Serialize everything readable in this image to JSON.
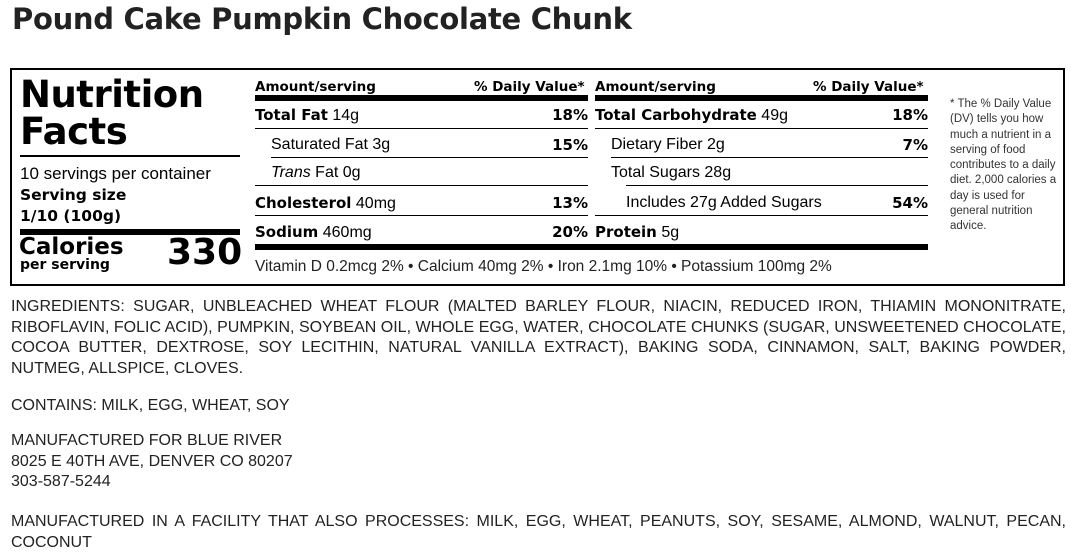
{
  "product": {
    "title": "Pound Cake Pumpkin Chocolate Chunk"
  },
  "nutrition": {
    "heading_line1": "Nutrition",
    "heading_line2": "Facts",
    "servings_per_container": "10 servings per container",
    "serving_size_label": "Serving size",
    "serving_size_value": "1/10 (100g)",
    "calories_label": "Calories",
    "calories_sub": "per serving",
    "calories_value": "330",
    "col_header_amount": "Amount/serving",
    "col_header_dv": "% Daily Value*",
    "left_rows": [
      {
        "name": "Total Fat",
        "amount": "14g",
        "dv": "18%"
      },
      {
        "name": "Saturated Fat",
        "amount": "3g",
        "dv": "15%"
      },
      {
        "name_italic": "Trans",
        "name": "Fat",
        "amount": "0g",
        "dv": ""
      },
      {
        "name": "Cholesterol",
        "amount": "40mg",
        "dv": "13%"
      },
      {
        "name": "Sodium",
        "amount": "460mg",
        "dv": "20%"
      }
    ],
    "right_rows": [
      {
        "name": "Total Carbohydrate",
        "amount": "49g",
        "dv": "18%"
      },
      {
        "name": "Dietary Fiber",
        "amount": "2g",
        "dv": "7%"
      },
      {
        "name": "Total Sugars",
        "amount": "28g",
        "dv": ""
      },
      {
        "name": "Includes 27g Added Sugars",
        "amount": "",
        "dv": "54%"
      },
      {
        "name": "Protein",
        "amount": "5g",
        "dv": ""
      }
    ],
    "vitamins": "Vitamin D 0.2mcg 2% • Calcium 40mg 2% • Iron 2.1mg 10% • Potassium 100mg 2%",
    "footnote": "* The % Daily Value (DV) tells you how much a nutrient in a serving of food contributes to a daily diet. 2,000 calories a day is used for general nutrition advice."
  },
  "ingredients": "INGREDIENTS: SUGAR, UNBLEACHED WHEAT FLOUR (MALTED BARLEY FLOUR, NIACIN, REDUCED IRON, THIAMIN MONONITRATE, RIBOFLAVIN, FOLIC ACID), PUMPKIN, SOYBEAN OIL, WHOLE EGG, WATER, CHOCOLATE CHUNKS (SUGAR, UNSWEETENED CHOCOLATE, COCOA BUTTER, DEXTROSE, SOY LECITHIN, NATURAL VANILLA EXTRACT), BAKING SODA, CINNAMON, SALT, BAKING POWDER, NUTMEG, ALLSPICE, CLOVES.",
  "contains": "CONTAINS: MILK, EGG, WHEAT, SOY",
  "manufacturer": {
    "line1": "MANUFACTURED FOR BLUE RIVER",
    "line2": "8025 E 40TH AVE, DENVER CO 80207",
    "line3": "303-587-5244"
  },
  "facility": "MANUFACTURED IN A FACILITY THAT ALSO PROCESSES: MILK, EGG, WHEAT, PEANUTS, SOY, SESAME, ALMOND, WALNUT, PECAN, COCONUT"
}
